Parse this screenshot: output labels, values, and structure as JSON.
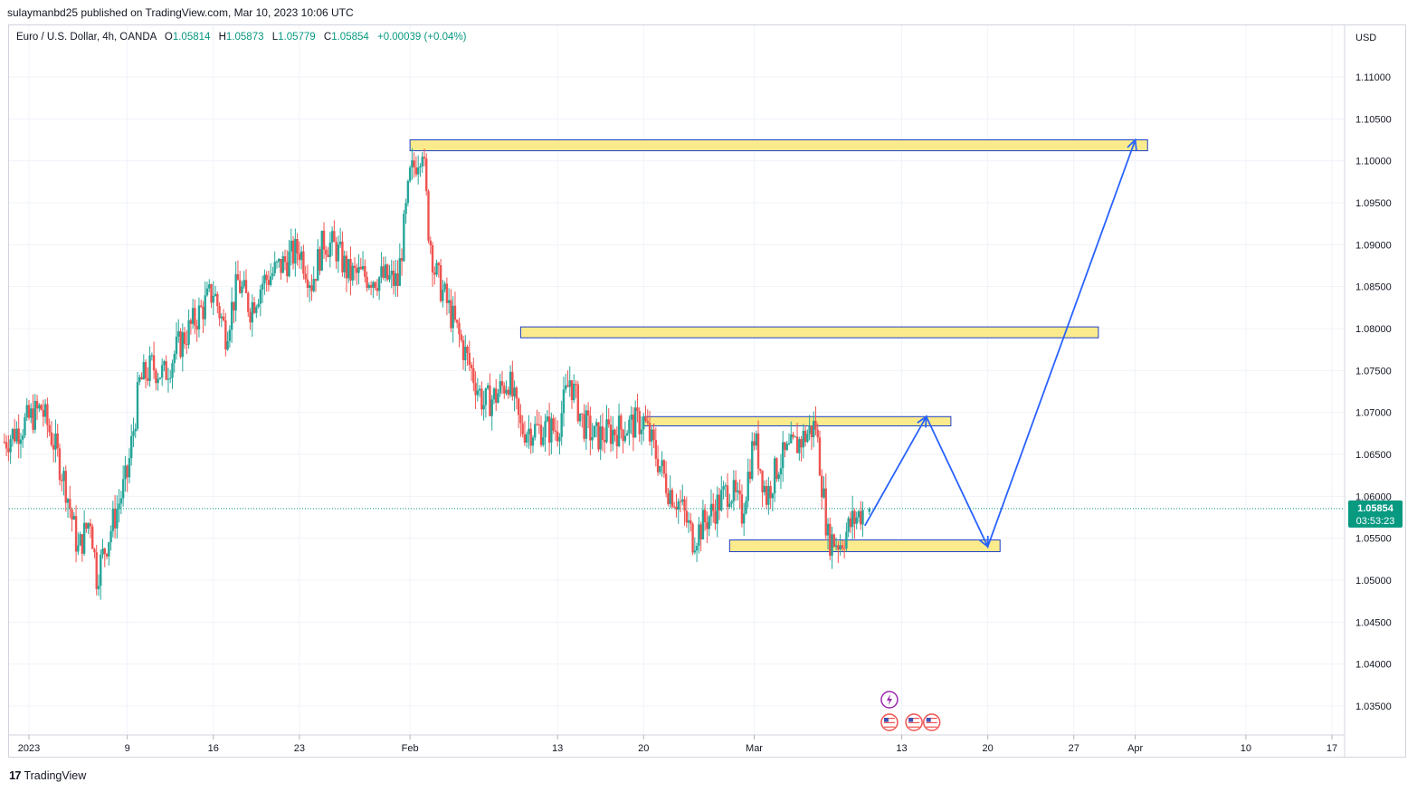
{
  "header": {
    "published_by": "sulaymanbd25 published on TradingView.com, Mar 10, 2023 10:06 UTC"
  },
  "legend": {
    "symbol": "Euro / U.S. Dollar, 4h, OANDA",
    "open_label": "O",
    "open": "1.05814",
    "high_label": "H",
    "high": "1.05873",
    "low_label": "L",
    "low": "1.05779",
    "close_label": "C",
    "close": "1.05854",
    "change": "+0.00039 (+0.04%)"
  },
  "price_axis": {
    "currency": "USD",
    "current_price": "1.05854",
    "countdown": "03:53:23"
  },
  "footer": {
    "brand": "TradingView"
  },
  "colors": {
    "up": "#26a69a",
    "down": "#ef5350",
    "zone_fill": "#fbeb8c",
    "zone_border": "#1e40c8",
    "arrow": "#2962ff"
  },
  "chart_data": {
    "type": "candlestick",
    "y_ticks": [
      1.035,
      1.04,
      1.045,
      1.05,
      1.055,
      1.06,
      1.065,
      1.07,
      1.075,
      1.08,
      1.085,
      1.09,
      1.095,
      1.1,
      1.105,
      1.11
    ],
    "y_tick_labels": [
      "1.03500",
      "1.04000",
      "1.04500",
      "1.05000",
      "1.05500",
      "1.06000",
      "1.06500",
      "1.07000",
      "1.07500",
      "1.08000",
      "1.08500",
      "1.09000",
      "1.09500",
      "1.10000",
      "1.10500",
      "1.11000"
    ],
    "x_ticks": [
      {
        "label": "2023",
        "date": "2023-01-01"
      },
      {
        "label": "9",
        "date": "2023-01-09"
      },
      {
        "label": "16",
        "date": "2023-01-16"
      },
      {
        "label": "23",
        "date": "2023-01-23"
      },
      {
        "label": "Feb",
        "date": "2023-02-01"
      },
      {
        "label": "13",
        "date": "2023-02-13"
      },
      {
        "label": "20",
        "date": "2023-02-20"
      },
      {
        "label": "Mar",
        "date": "2023-03-01"
      },
      {
        "label": "13",
        "date": "2023-03-13"
      },
      {
        "label": "20",
        "date": "2023-03-20"
      },
      {
        "label": "27",
        "date": "2023-03-27"
      },
      {
        "label": "Apr",
        "date": "2023-04-01"
      },
      {
        "label": "10",
        "date": "2023-04-10"
      },
      {
        "label": "17",
        "date": "2023-04-17"
      }
    ],
    "price_path": [
      [
        "2022-12-30",
        1.0665
      ],
      [
        "2023-01-02",
        1.0705
      ],
      [
        "2023-01-03",
        1.0665
      ],
      [
        "2023-01-04",
        1.0612
      ],
      [
        "2023-01-05",
        1.0535
      ],
      [
        "2023-01-06",
        1.0575
      ],
      [
        "2023-01-06T12",
        1.0505
      ],
      [
        "2023-01-09",
        1.0625
      ],
      [
        "2023-01-10",
        1.0735
      ],
      [
        "2023-01-11",
        1.0755
      ],
      [
        "2023-01-12",
        1.0745
      ],
      [
        "2023-01-13",
        1.0775
      ],
      [
        "2023-01-16",
        1.0845
      ],
      [
        "2023-01-17",
        1.0795
      ],
      [
        "2023-01-18",
        1.0855
      ],
      [
        "2023-01-19",
        1.0825
      ],
      [
        "2023-01-20",
        1.0855
      ],
      [
        "2023-01-23",
        1.0895
      ],
      [
        "2023-01-24",
        1.0855
      ],
      [
        "2023-01-25",
        1.0905
      ],
      [
        "2023-01-26",
        1.0895
      ],
      [
        "2023-01-27",
        1.0865
      ],
      [
        "2023-01-30",
        1.086
      ],
      [
        "2023-01-31",
        1.0855
      ],
      [
        "2023-02-01",
        1.098
      ],
      [
        "2023-02-02",
        1.102
      ],
      [
        "2023-02-02T12",
        1.092
      ],
      [
        "2023-02-03",
        1.087
      ],
      [
        "2023-02-06",
        1.075
      ],
      [
        "2023-02-07",
        1.071
      ],
      [
        "2023-02-08",
        1.072
      ],
      [
        "2023-02-09",
        1.074
      ],
      [
        "2023-02-10",
        1.068
      ],
      [
        "2023-02-13",
        1.068
      ],
      [
        "2023-02-14",
        1.074
      ],
      [
        "2023-02-15",
        1.069
      ],
      [
        "2023-02-16",
        1.067
      ],
      [
        "2023-02-17",
        1.0675
      ],
      [
        "2023-02-20",
        1.069
      ],
      [
        "2023-02-21",
        1.065
      ],
      [
        "2023-02-22",
        1.061
      ],
      [
        "2023-02-23",
        1.059
      ],
      [
        "2023-02-24",
        1.055
      ],
      [
        "2023-02-27",
        1.061
      ],
      [
        "2023-02-28",
        1.058
      ],
      [
        "2023-03-01",
        1.067
      ],
      [
        "2023-03-02",
        1.06
      ],
      [
        "2023-03-03",
        1.064
      ],
      [
        "2023-03-06",
        1.0685
      ],
      [
        "2023-03-07",
        1.055
      ],
      [
        "2023-03-08",
        1.0545
      ],
      [
        "2023-03-09",
        1.057
      ],
      [
        "2023-03-10",
        1.05854
      ]
    ],
    "annotations": {
      "zones": [
        {
          "from": "2023-02-01",
          "to": "2023-04-02",
          "top": 1.1025,
          "bottom": 1.1012
        },
        {
          "from": "2023-02-10",
          "to": "2023-03-29",
          "top": 1.0802,
          "bottom": 1.0789
        },
        {
          "from": "2023-02-20",
          "to": "2023-03-17",
          "top": 1.0695,
          "bottom": 1.0684
        },
        {
          "from": "2023-02-27",
          "to": "2023-03-21",
          "top": 1.0548,
          "bottom": 1.0534
        }
      ],
      "projection_path": [
        [
          "2023-03-10",
          1.0565
        ],
        [
          "2023-03-15",
          1.0695
        ],
        [
          "2023-03-20",
          1.054
        ],
        [
          "2023-04-01",
          1.1025
        ]
      ]
    },
    "events": [
      {
        "date": "2023-03-12",
        "type": "lightning"
      },
      {
        "date": "2023-03-12",
        "type": "us-flag"
      },
      {
        "date": "2023-03-14",
        "type": "us-flag"
      },
      {
        "date": "2023-03-15",
        "type": "us-flag"
      }
    ]
  }
}
